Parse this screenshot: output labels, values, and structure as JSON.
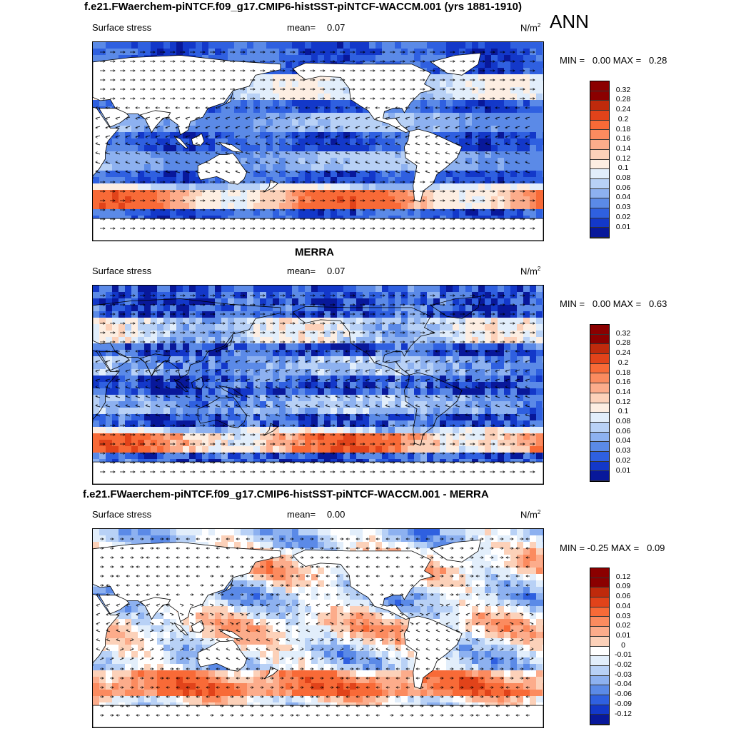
{
  "header": {
    "title": "f.e21.FWaerchem-piNTCF.f09_g17.CMIP6-histSST-piNTCF-WACCM.001 (yrs 1881-1910)",
    "season": "ANN"
  },
  "panels": [
    {
      "title": "",
      "variable": "Surface stress",
      "mean_label": "mean=",
      "mean_value": "0.07",
      "units": "N/m",
      "units_sup": "2",
      "minmax": "MIN =   0.00 MAX =   0.28",
      "colorbar": [
        "0.32",
        "0.28",
        "0.24",
        "0.2",
        "0.18",
        "0.16",
        "0.14",
        "0.12",
        "0.1",
        "0.08",
        "0.06",
        "0.04",
        "0.03",
        "0.02",
        "0.01"
      ],
      "colors": [
        "#8b0000",
        "#bf2a0c",
        "#e1431a",
        "#f86a37",
        "#fb8b5f",
        "#fcac8b",
        "#fcd1b9",
        "#fdeee2",
        "#e2eefb",
        "#b8d1f6",
        "#8db1f0",
        "#5b8ae7",
        "#2f60e0",
        "#1338c9",
        "#08189a"
      ]
    },
    {
      "title": "MERRA",
      "variable": "Surface stress",
      "mean_label": "mean=",
      "mean_value": "0.07",
      "units": "N/m",
      "units_sup": "2",
      "minmax": "MIN =   0.00 MAX =   0.63",
      "colorbar": [
        "0.32",
        "0.28",
        "0.24",
        "0.2",
        "0.18",
        "0.16",
        "0.14",
        "0.12",
        "0.1",
        "0.08",
        "0.06",
        "0.04",
        "0.03",
        "0.02",
        "0.01"
      ],
      "colors": [
        "#8b0000",
        "#bf2a0c",
        "#e1431a",
        "#f86a37",
        "#fb8b5f",
        "#fcac8b",
        "#fcd1b9",
        "#fdeee2",
        "#e2eefb",
        "#b8d1f6",
        "#8db1f0",
        "#5b8ae7",
        "#2f60e0",
        "#1338c9",
        "#08189a"
      ]
    },
    {
      "title": "f.e21.FWaerchem-piNTCF.f09_g17.CMIP6-histSST-piNTCF-WACCM.001 - MERRA",
      "variable": "Surface stress",
      "mean_label": "mean=",
      "mean_value": "0.00",
      "units": "N/m",
      "units_sup": "2",
      "minmax": "MIN = -0.25 MAX =   0.09",
      "colorbar": [
        "0.12",
        "0.09",
        "0.06",
        "0.04",
        "0.03",
        "0.02",
        "0.01",
        "0",
        "-0.01",
        "-0.02",
        "-0.03",
        "-0.04",
        "-0.06",
        "-0.09",
        "-0.12"
      ],
      "colors": [
        "#8b0000",
        "#bf2a0c",
        "#e1431a",
        "#f86a37",
        "#fb8b5f",
        "#fcac8b",
        "#fcd1b9",
        "#ffffff",
        "#e2eefb",
        "#b8d1f6",
        "#8db1f0",
        "#5b8ae7",
        "#2f60e0",
        "#1338c9",
        "#08189a"
      ]
    }
  ]
}
